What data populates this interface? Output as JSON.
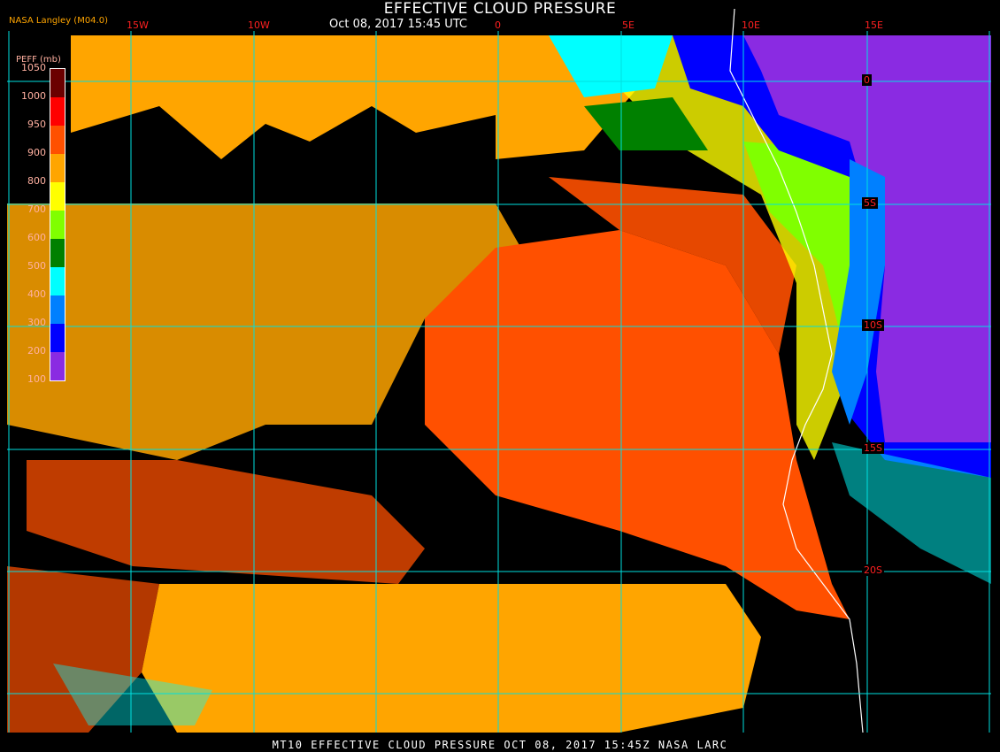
{
  "header": {
    "title": "EFFECTIVE CLOUD PRESSURE",
    "subtitle": "Oct 08, 2017 15:45 UTC",
    "credit": "NASA Langley (M04.0)"
  },
  "footer": {
    "text": "MT10  EFFECTIVE CLOUD PRESSURE   OCT 08, 2017 15:45Z   NASA LARC"
  },
  "longitude_labels": [
    "15W",
    "10W",
    "0",
    "5E",
    "10E",
    "15E"
  ],
  "latitude_labels": [
    "0",
    "5S",
    "10S",
    "15S",
    "20S"
  ],
  "legend": {
    "title": "PEFF (mb)",
    "ticks": [
      "100",
      "200",
      "300",
      "400",
      "500",
      "600",
      "700",
      "800",
      "900",
      "950",
      "1000",
      "1050"
    ],
    "colors": [
      "#8a2be2",
      "#0000ff",
      "#0080ff",
      "#00ffff",
      "#008000",
      "#80ff00",
      "#ffff00",
      "#ffa500",
      "#ff5000",
      "#ff0000",
      "#6b0000"
    ]
  },
  "colors": {
    "grid": "#00e0e0",
    "label": "#ff2020",
    "coast": "#ffffff",
    "background": "#000000"
  }
}
